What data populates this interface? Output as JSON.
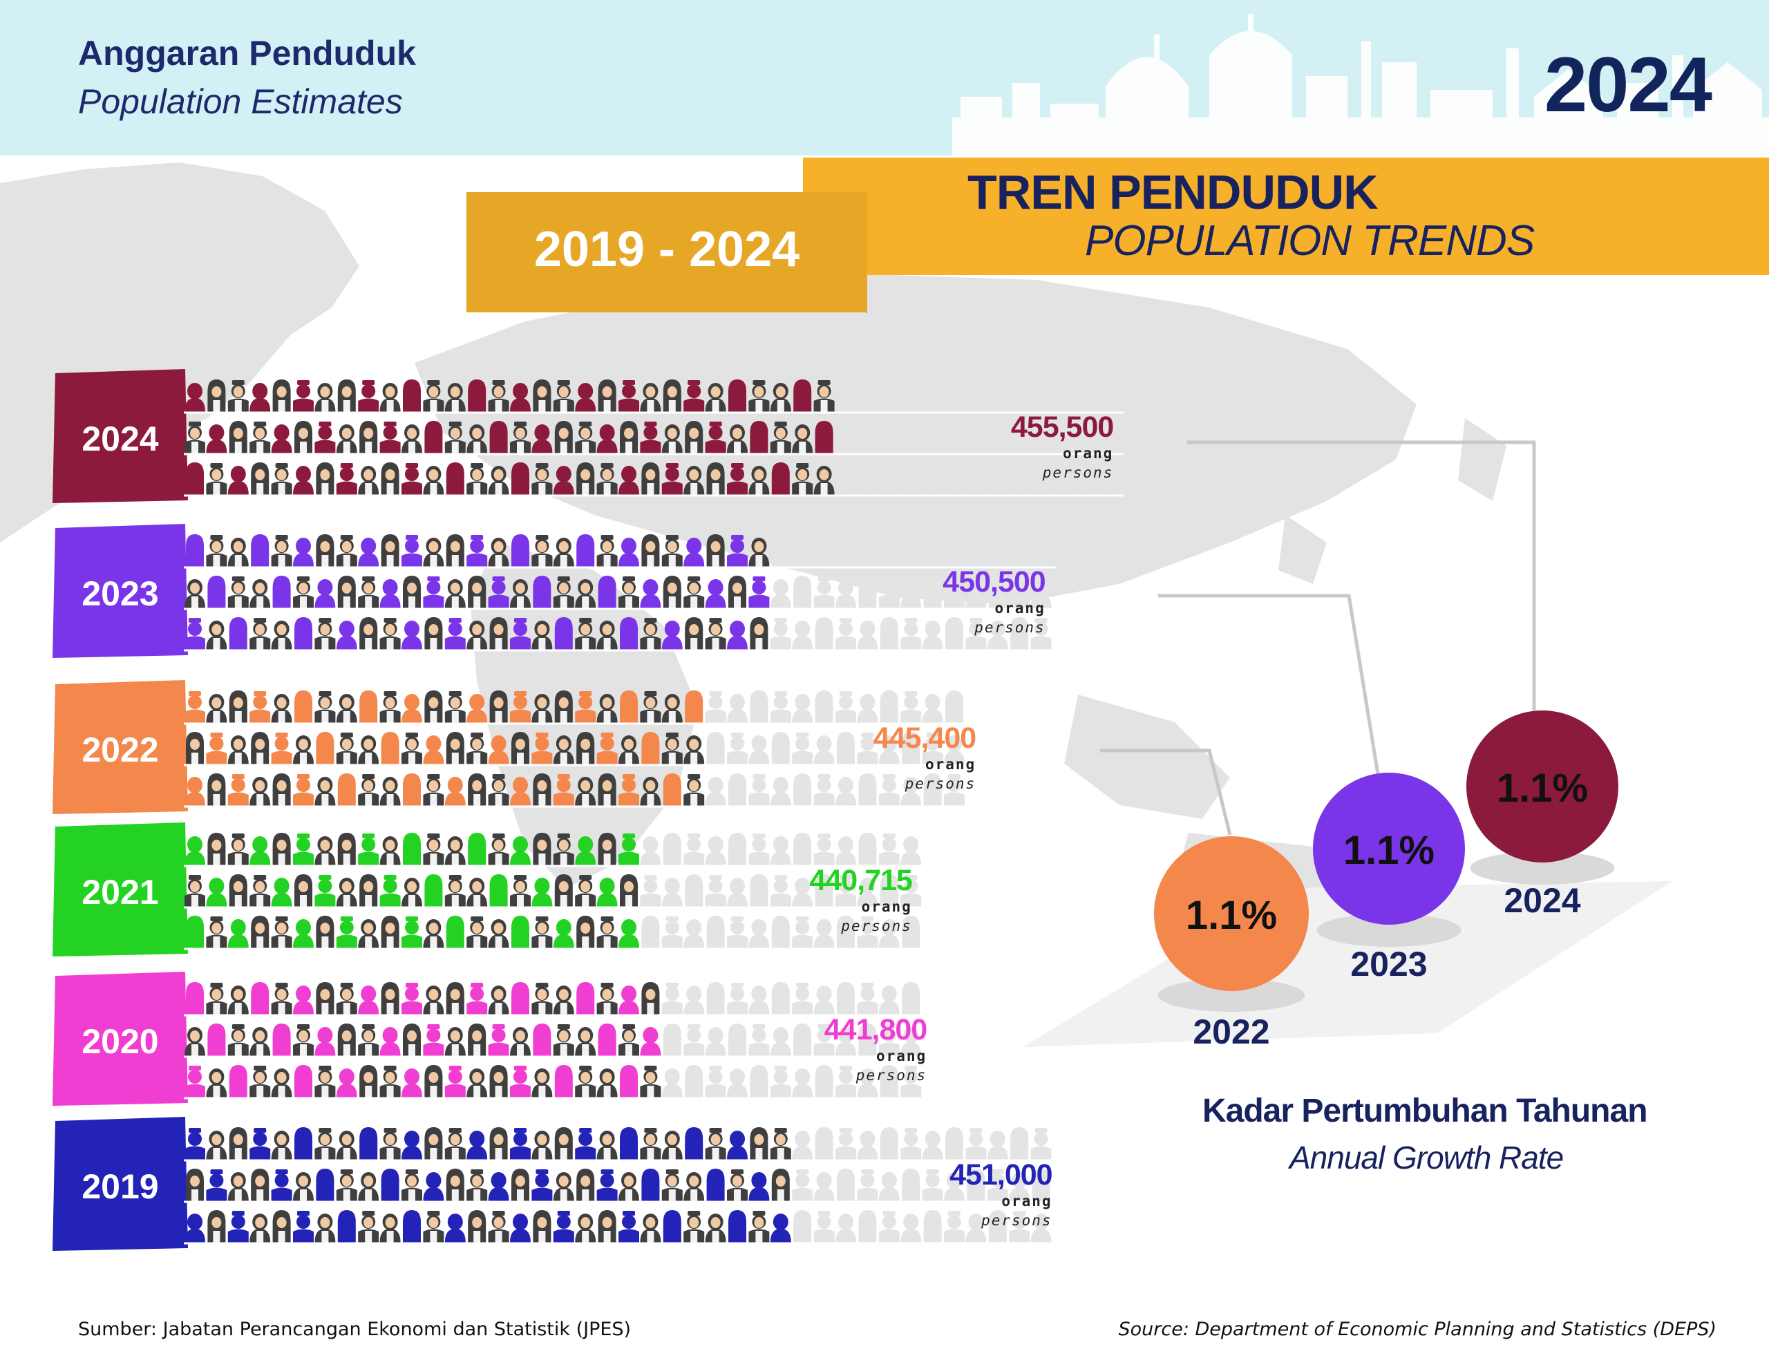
{
  "header": {
    "title_malay": "Anggaran Penduduk",
    "title_english": "Population Estimates",
    "year": "2024"
  },
  "banner": {
    "title_malay": "TREN PENDUDUK",
    "title_english": "POPULATION TRENDS",
    "range": "2019 - 2024"
  },
  "unit_malay": "orang",
  "unit_english": "persons",
  "chart_data": [
    {
      "type": "bar",
      "title": "TREN PENDUDUK / POPULATION TRENDS",
      "categories": [
        "2024",
        "2023",
        "2022",
        "2021",
        "2020",
        "2019"
      ],
      "values": [
        455500,
        450500,
        445400,
        440715,
        441800,
        451000
      ],
      "value_labels": [
        "455,500",
        "450,500",
        "445,400",
        "440,715",
        "441,800",
        "451,000"
      ],
      "unit": "orang / persons",
      "colors": [
        "#8b1a3c",
        "#7b35e8",
        "#f4874b",
        "#24d224",
        "#f03ed2",
        "#2423b8"
      ],
      "grid": false,
      "legend": "none"
    },
    {
      "type": "scatter",
      "title": "Kadar Pertumbuhan Tahunan / Annual Growth Rate",
      "categories": [
        "2022",
        "2023",
        "2024"
      ],
      "values": [
        1.1,
        1.1,
        1.1
      ],
      "value_labels": [
        "1.1%",
        "1.1%",
        "1.1%"
      ],
      "colors": [
        "#f4874b",
        "#7b35e8",
        "#8b1a3c"
      ]
    }
  ],
  "growth": {
    "title_malay": "Kadar Pertumbuhan Tahunan",
    "title_english": "Annual Growth Rate"
  },
  "footer": {
    "source_malay": "Sumber: Jabatan Perancangan Ekonomi dan Statistik (JPES)",
    "source_english": "Source: Department of Economic Planning and Statistics (DEPS)"
  }
}
